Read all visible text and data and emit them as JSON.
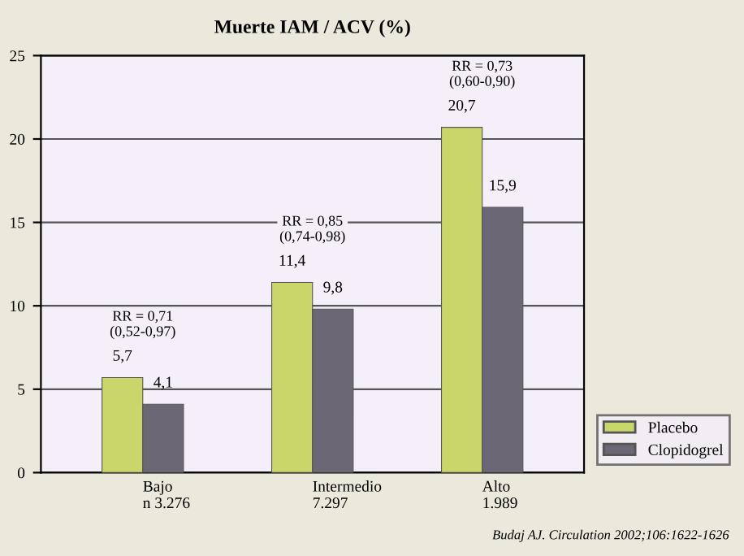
{
  "chart_data": {
    "type": "bar",
    "title": "Muerte IAM / ACV (%)",
    "categories": [
      "Bajo\nn 3.276",
      "Intermedio\n7.297",
      "Alto\n1.989"
    ],
    "series": [
      {
        "name": "Placebo",
        "color": "#c9d66a",
        "values": [
          5.7,
          11.4,
          20.7
        ],
        "value_labels": [
          "5,7",
          "11,4",
          "20,7"
        ]
      },
      {
        "name": "Clopidogrel",
        "color": "#6b6775",
        "values": [
          4.1,
          9.8,
          15.9
        ],
        "value_labels": [
          "4,1",
          "9,8",
          "15,9"
        ]
      }
    ],
    "ylim": [
      0,
      25
    ],
    "yticks": [
      0,
      5,
      10,
      15,
      20,
      25
    ],
    "grid": "y",
    "legend": "bottom right",
    "annotations": [
      "RR = 0,71\n(0,52-0,97)",
      "RR = 0,85\n(0,74-0,98)",
      "RR = 0,73\n(0,60-0,90)",
      "Budaj AJ. Circulation 2002;106:1622-1626"
    ]
  }
}
